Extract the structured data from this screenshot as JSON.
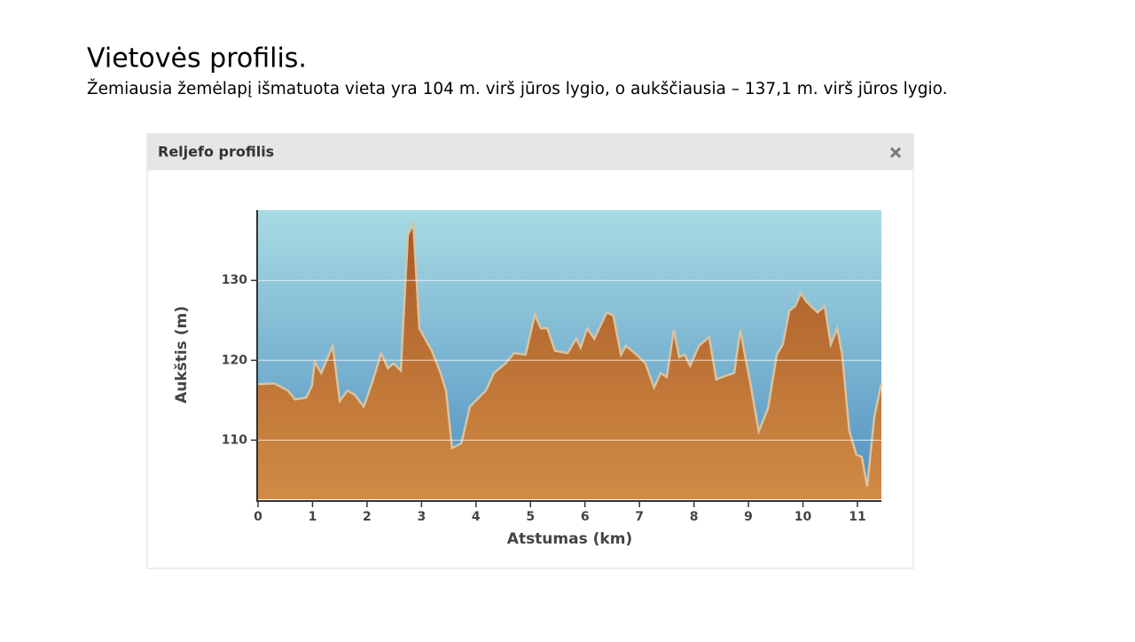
{
  "header": {
    "title": "Vietovės profilis.",
    "subtitle": "Žemiausia žemėlapį išmatuota vieta yra 104 m. virš jūros lygio, o aukščiausia – 137,1 m. virš jūros lygio."
  },
  "panel": {
    "title": "Reljefo profilis"
  },
  "chart_data": {
    "type": "area",
    "x_label": "Atstumas (km)",
    "y_label": "Aukštis (m)",
    "x": [
      0,
      0.3,
      0.55,
      0.68,
      0.88,
      0.99,
      1.04,
      1.16,
      1.37,
      1.5,
      1.64,
      1.77,
      1.94,
      2.1,
      2.26,
      2.38,
      2.49,
      2.62,
      2.75,
      2.85,
      2.96,
      3.19,
      3.35,
      3.45,
      3.56,
      3.73,
      3.89,
      4.18,
      4.33,
      4.54,
      4.7,
      4.91,
      5.08,
      5.19,
      5.31,
      5.45,
      5.68,
      5.84,
      5.92,
      6.04,
      6.17,
      6.4,
      6.52,
      6.66,
      6.75,
      6.95,
      7.11,
      7.27,
      7.39,
      7.5,
      7.63,
      7.73,
      7.83,
      7.93,
      8.09,
      8.28,
      8.41,
      8.64,
      8.74,
      8.85,
      9.03,
      9.19,
      9.36,
      9.52,
      9.63,
      9.75,
      9.86,
      9.96,
      10.07,
      10.27,
      10.4,
      10.51,
      10.63,
      10.72,
      10.85,
      10.98,
      11.08,
      11.18,
      11.31,
      11.44
    ],
    "values": [
      117,
      117.1,
      116.2,
      115.1,
      115.3,
      116.8,
      119.8,
      118.4,
      121.8,
      114.9,
      116.2,
      115.7,
      114.2,
      117.3,
      120.9,
      119,
      119.6,
      118.7,
      135.7,
      137.1,
      124,
      121.2,
      118.4,
      116.2,
      109,
      109.6,
      114.2,
      116.2,
      118.4,
      119.6,
      120.9,
      120.7,
      125.7,
      124,
      124,
      121.2,
      120.9,
      122.7,
      121.6,
      124,
      122.7,
      126,
      125.6,
      120.7,
      121.8,
      120.7,
      119.6,
      116.6,
      118.4,
      117.9,
      123.8,
      120.4,
      120.7,
      119.3,
      121.8,
      122.9,
      117.6,
      118.2,
      118.4,
      123.8,
      117.3,
      111.1,
      114,
      120.7,
      122,
      126.2,
      126.8,
      128.4,
      127.3,
      126,
      126.8,
      122,
      124,
      120.7,
      111.2,
      108.2,
      107.9,
      104.2,
      112.9,
      117.1
    ],
    "color": "#a85a26",
    "sky_color": "#a8dbe3",
    "xlim": [
      0,
      11.44
    ],
    "ylim": [
      102.6,
      138.8
    ],
    "xticks": [
      0,
      1,
      2,
      3,
      4,
      5,
      6,
      7,
      8,
      9,
      10,
      11
    ],
    "yticks": [
      110,
      120,
      130
    ],
    "grid": true
  }
}
